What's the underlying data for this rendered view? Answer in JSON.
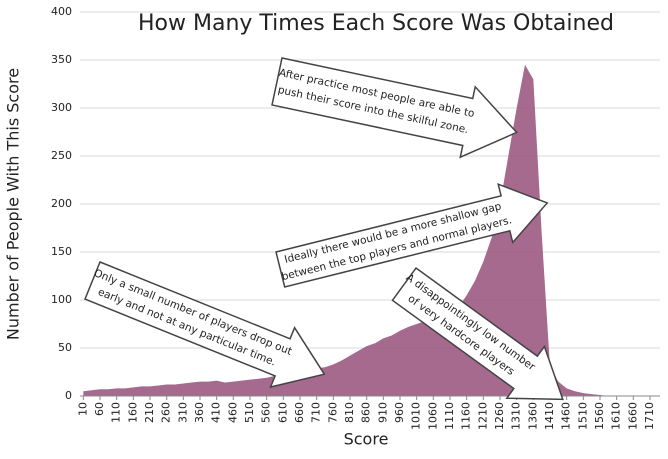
{
  "chart_data": {
    "type": "area",
    "title": "How Many Times Each Score Was Obtained",
    "x_label": "Score",
    "y_label": "Number of People With This Score",
    "color": "#9b5a82",
    "grid": true,
    "x": [
      10,
      35,
      60,
      85,
      110,
      135,
      160,
      185,
      210,
      235,
      260,
      285,
      310,
      335,
      360,
      385,
      410,
      435,
      460,
      485,
      510,
      535,
      560,
      585,
      610,
      635,
      660,
      685,
      710,
      735,
      760,
      785,
      810,
      835,
      860,
      885,
      910,
      935,
      960,
      985,
      1010,
      1035,
      1060,
      1085,
      1110,
      1135,
      1160,
      1185,
      1210,
      1235,
      1260,
      1285,
      1310,
      1335,
      1360,
      1385,
      1410,
      1435,
      1460,
      1485,
      1510,
      1535,
      1560,
      1585,
      1610,
      1635,
      1660,
      1685,
      1710
    ],
    "values": [
      5,
      6,
      7,
      7,
      8,
      8,
      9,
      10,
      10,
      11,
      12,
      12,
      13,
      14,
      15,
      15,
      16,
      14,
      15,
      16,
      17,
      18,
      19,
      21,
      22,
      24,
      25,
      27,
      29,
      30,
      33,
      37,
      42,
      47,
      52,
      55,
      60,
      63,
      68,
      72,
      75,
      78,
      80,
      82,
      85,
      92,
      105,
      120,
      140,
      165,
      200,
      250,
      300,
      345,
      330,
      170,
      30,
      15,
      8,
      5,
      3,
      2,
      1,
      0,
      0,
      0,
      0,
      0,
      0
    ],
    "xlim": [
      0,
      1740
    ],
    "ylim": [
      0,
      400
    ],
    "xticks": [
      10,
      60,
      110,
      160,
      210,
      260,
      310,
      360,
      410,
      460,
      510,
      560,
      610,
      660,
      710,
      760,
      810,
      860,
      910,
      960,
      1010,
      1060,
      1110,
      1160,
      1210,
      1260,
      1310,
      1360,
      1410,
      1460,
      1510,
      1560,
      1610,
      1660,
      1710
    ],
    "yticks": [
      0,
      50,
      100,
      150,
      200,
      250,
      300,
      350,
      400
    ],
    "annotations": [
      {
        "lines": [
          "After practice most people are able to",
          "push their score into the skilful zone."
        ]
      },
      {
        "lines": [
          "Ideally there would be a more shallow gap",
          "between the top players and normal players."
        ]
      },
      {
        "lines": [
          "Only a small number of players drop out",
          "early and not at any particular time."
        ]
      },
      {
        "lines": [
          "A disappointingly low number",
          "of very hardcore players"
        ]
      }
    ]
  }
}
